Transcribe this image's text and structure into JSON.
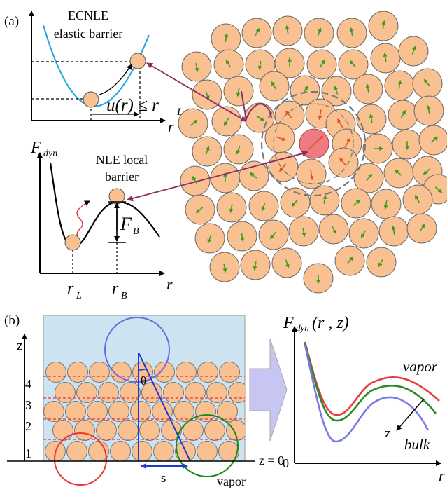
{
  "panel_a": {
    "label": "(a)",
    "elastic": {
      "title_line1": "ECNLE",
      "title_line2": "elastic barrier",
      "displacement_label": "u(r) ≤ r",
      "displacement_sub": "L",
      "x_axis": "r"
    },
    "local": {
      "y_axis": "F",
      "y_axis_sub": "dyn",
      "title_line1": "NLE local",
      "title_line2": "barrier",
      "barrier_label": "F",
      "barrier_sub": "B",
      "tick_rL": "r",
      "tick_rL_sub": "L",
      "tick_rB": "r",
      "tick_rB_sub": "B",
      "x_axis": "r"
    }
  },
  "panel_b": {
    "label": "(b)",
    "z_axis": "z",
    "layers": [
      "1",
      "2",
      "3",
      "4"
    ],
    "z_zero": "z = 0",
    "angle": "θ",
    "s_label": "s",
    "vapor_label": "vapor",
    "plot": {
      "y_label": "F",
      "y_label_sub": "dyn",
      "y_label_args": "(r , z)",
      "x_label": "r",
      "origin": "0",
      "vapor": "vapor",
      "bulk": "bulk",
      "z": "z"
    }
  },
  "colors": {
    "particle": "#f9c191",
    "central_particle": "#ef7b82",
    "arrow_green": "#3f9b1f",
    "arrow_red": "#e8501e",
    "link_purple": "#8a2e63",
    "curve_blue": "#2aa8e0",
    "film_bg": "#cde3f1",
    "curve_red": "#e83c3c",
    "curve_green": "#2c8a2c",
    "curve_violet": "#7878e6"
  }
}
